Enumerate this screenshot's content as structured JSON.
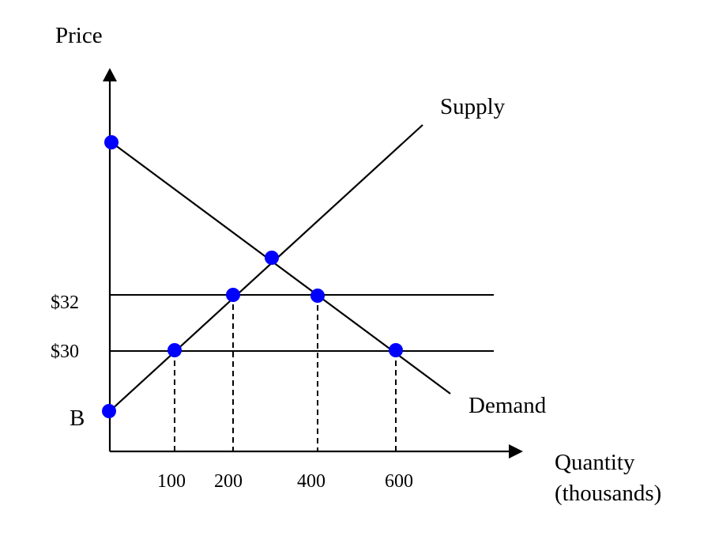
{
  "axes": {
    "y_label": "Price",
    "x_label_line1": "Quantity",
    "x_label_line2": "(thousands)"
  },
  "curves": {
    "supply_label": "Supply",
    "demand_label": "Demand"
  },
  "price_levels": [
    {
      "label": "$32"
    },
    {
      "label": "$30"
    }
  ],
  "intercept_label": "B",
  "quantity_ticks": [
    "100",
    "200",
    "400",
    "600"
  ],
  "colors": {
    "point": "#0000ff",
    "line": "#000000",
    "background": "#ffffff"
  }
}
